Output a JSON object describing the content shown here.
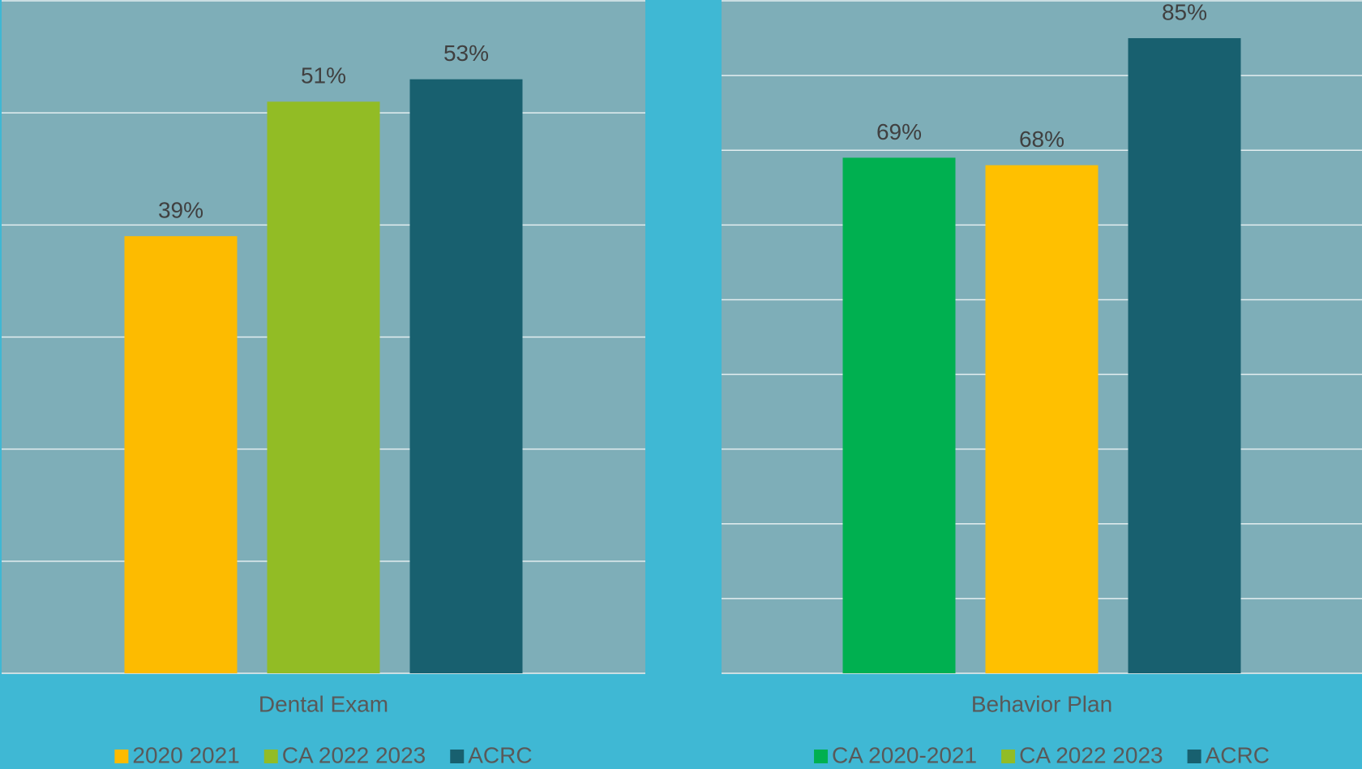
{
  "chart_data": [
    {
      "type": "bar",
      "categories": [
        "Dental Exam"
      ],
      "ylim": [
        0,
        60
      ],
      "yticks": [
        0,
        10,
        20,
        30,
        40,
        50,
        60
      ],
      "grid": true,
      "legend": "bottom",
      "series": [
        {
          "name": "2020 2021",
          "color": "#fdbb00",
          "values": [
            39
          ],
          "value_labels": [
            "39%"
          ]
        },
        {
          "name": "CA 2022 2023",
          "color": "#92bc25",
          "values": [
            51
          ],
          "value_labels": [
            "51%"
          ]
        },
        {
          "name": "ACRC",
          "color": "#18606f",
          "values": [
            53
          ],
          "value_labels": [
            "53%"
          ]
        }
      ]
    },
    {
      "type": "bar",
      "categories": [
        "Behavior Plan"
      ],
      "ylim": [
        0,
        90
      ],
      "yticks": [
        0,
        10,
        20,
        30,
        40,
        50,
        60,
        70,
        80,
        90
      ],
      "grid": true,
      "legend": "bottom",
      "series": [
        {
          "name": "CA 2020-2021",
          "color": "#00b050",
          "values": [
            69
          ],
          "value_labels": [
            "69%"
          ]
        },
        {
          "name": "CA 2022 2023",
          "color": "#ffc000",
          "legend_color": "#92bc25",
          "values": [
            68
          ],
          "value_labels": [
            "68%"
          ]
        },
        {
          "name": "ACRC",
          "color": "#18606f",
          "values": [
            85
          ],
          "value_labels": [
            "85%"
          ]
        }
      ]
    }
  ]
}
